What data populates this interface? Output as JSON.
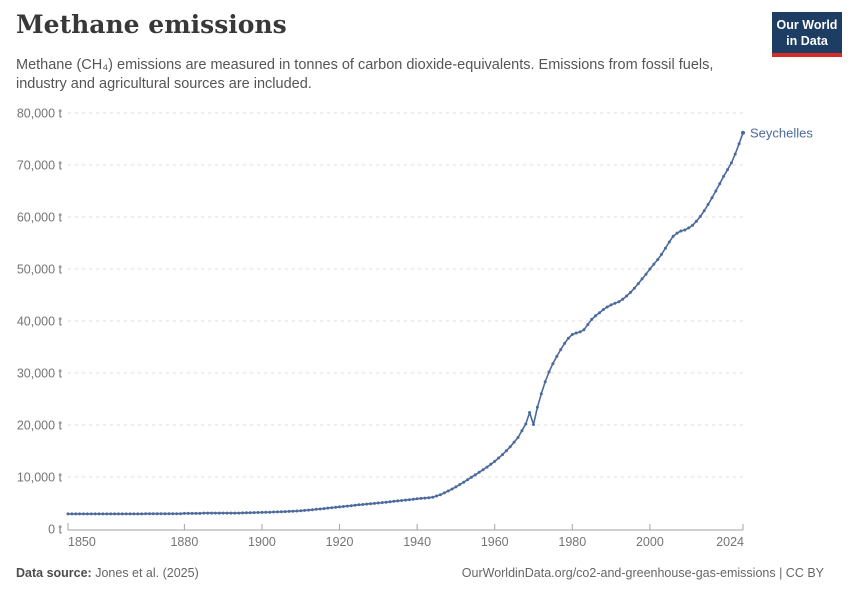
{
  "header": {
    "title": "Methane emissions",
    "subtitle": "Methane (CH₄) emissions are measured in tonnes of carbon dioxide-equivalents. Emissions from fossil fuels, industry and agricultural sources are included.",
    "logo": {
      "line1": "Our World",
      "line2": "in Data"
    }
  },
  "chart_data": {
    "type": "line",
    "title": "Methane emissions",
    "ylabel": "tonnes of CO₂-equivalents",
    "xlabel": "",
    "entity": "Seychelles",
    "xlim": [
      1850,
      2024
    ],
    "ylim": [
      0,
      80000
    ],
    "grid": "horizontal-dashed",
    "legend_position": "end-of-line",
    "start_year": 1850,
    "end_year": 2024,
    "xticks": [
      {
        "year": 1850,
        "label": "1850"
      },
      {
        "year": 1880,
        "label": "1880"
      },
      {
        "year": 1900,
        "label": "1900"
      },
      {
        "year": 1920,
        "label": "1920"
      },
      {
        "year": 1940,
        "label": "1940"
      },
      {
        "year": 1960,
        "label": "1960"
      },
      {
        "year": 1980,
        "label": "1980"
      },
      {
        "year": 2000,
        "label": "2000"
      },
      {
        "year": 2024,
        "label": "2024"
      }
    ],
    "yticks": [
      {
        "value": 0,
        "label": "0 t"
      },
      {
        "value": 10000,
        "label": "10,000 t"
      },
      {
        "value": 20000,
        "label": "20,000 t"
      },
      {
        "value": 30000,
        "label": "30,000 t"
      },
      {
        "value": 40000,
        "label": "40,000 t"
      },
      {
        "value": 50000,
        "label": "50,000 t"
      },
      {
        "value": 60000,
        "label": "60,000 t"
      },
      {
        "value": 70000,
        "label": "70,000 t"
      },
      {
        "value": 80000,
        "label": "80,000 t"
      }
    ],
    "series": [
      {
        "name": "Seychelles",
        "color": "#4c6a9c",
        "values": [
          2900,
          2900,
          2900,
          2900,
          2900,
          2900,
          2900,
          2900,
          2900,
          2900,
          2900,
          2900,
          2900,
          2900,
          2900,
          2900,
          2900,
          2900,
          2900,
          2900,
          2950,
          2950,
          2950,
          2950,
          2950,
          2950,
          2950,
          2950,
          2950,
          2950,
          3000,
          3000,
          3000,
          3000,
          3000,
          3050,
          3050,
          3050,
          3050,
          3050,
          3050,
          3050,
          3050,
          3050,
          3050,
          3100,
          3120,
          3140,
          3160,
          3180,
          3200,
          3220,
          3240,
          3260,
          3280,
          3300,
          3340,
          3380,
          3420,
          3460,
          3500,
          3570,
          3640,
          3710,
          3780,
          3850,
          3930,
          4010,
          4090,
          4170,
          4250,
          4330,
          4410,
          4490,
          4570,
          4650,
          4720,
          4790,
          4860,
          4930,
          5000,
          5080,
          5160,
          5240,
          5320,
          5400,
          5480,
          5560,
          5640,
          5720,
          5800,
          5875,
          5950,
          6025,
          6100,
          6350,
          6600,
          6950,
          7300,
          7700,
          8100,
          8550,
          9000,
          9475,
          9950,
          10425,
          10900,
          11400,
          11900,
          12450,
          13000,
          13650,
          14300,
          15050,
          15800,
          16700,
          17600,
          18900,
          20200,
          22400,
          20100,
          23400,
          26000,
          28300,
          30200,
          31800,
          33200,
          34500,
          35700,
          36700,
          37400,
          37700,
          37900,
          38300,
          39300,
          40300,
          41000,
          41600,
          42200,
          42700,
          43100,
          43400,
          43700,
          44200,
          44800,
          45500,
          46300,
          47200,
          48100,
          49000,
          50000,
          50900,
          51800,
          52800,
          54000,
          55200,
          56300,
          56900,
          57300,
          57500,
          57900,
          58400,
          59200,
          60100,
          61200,
          62400,
          63700,
          65000,
          66400,
          67800,
          69100,
          70400,
          72100,
          74100,
          76200
        ]
      }
    ]
  },
  "colors": {
    "line": "#4c6a9c",
    "entity_label": "#4c6a9c",
    "grid": "#dddddd",
    "axis": "#a3a3a3",
    "tick_label": "#757575",
    "logo_bg": "#1d3d63",
    "logo_accent": "#d42b2b"
  },
  "footer": {
    "source_label": "Data source:",
    "source_value": " Jones et al. (2025)",
    "right_text": "OurWorldinData.org/co2-and-greenhouse-gas-emissions | CC BY"
  }
}
